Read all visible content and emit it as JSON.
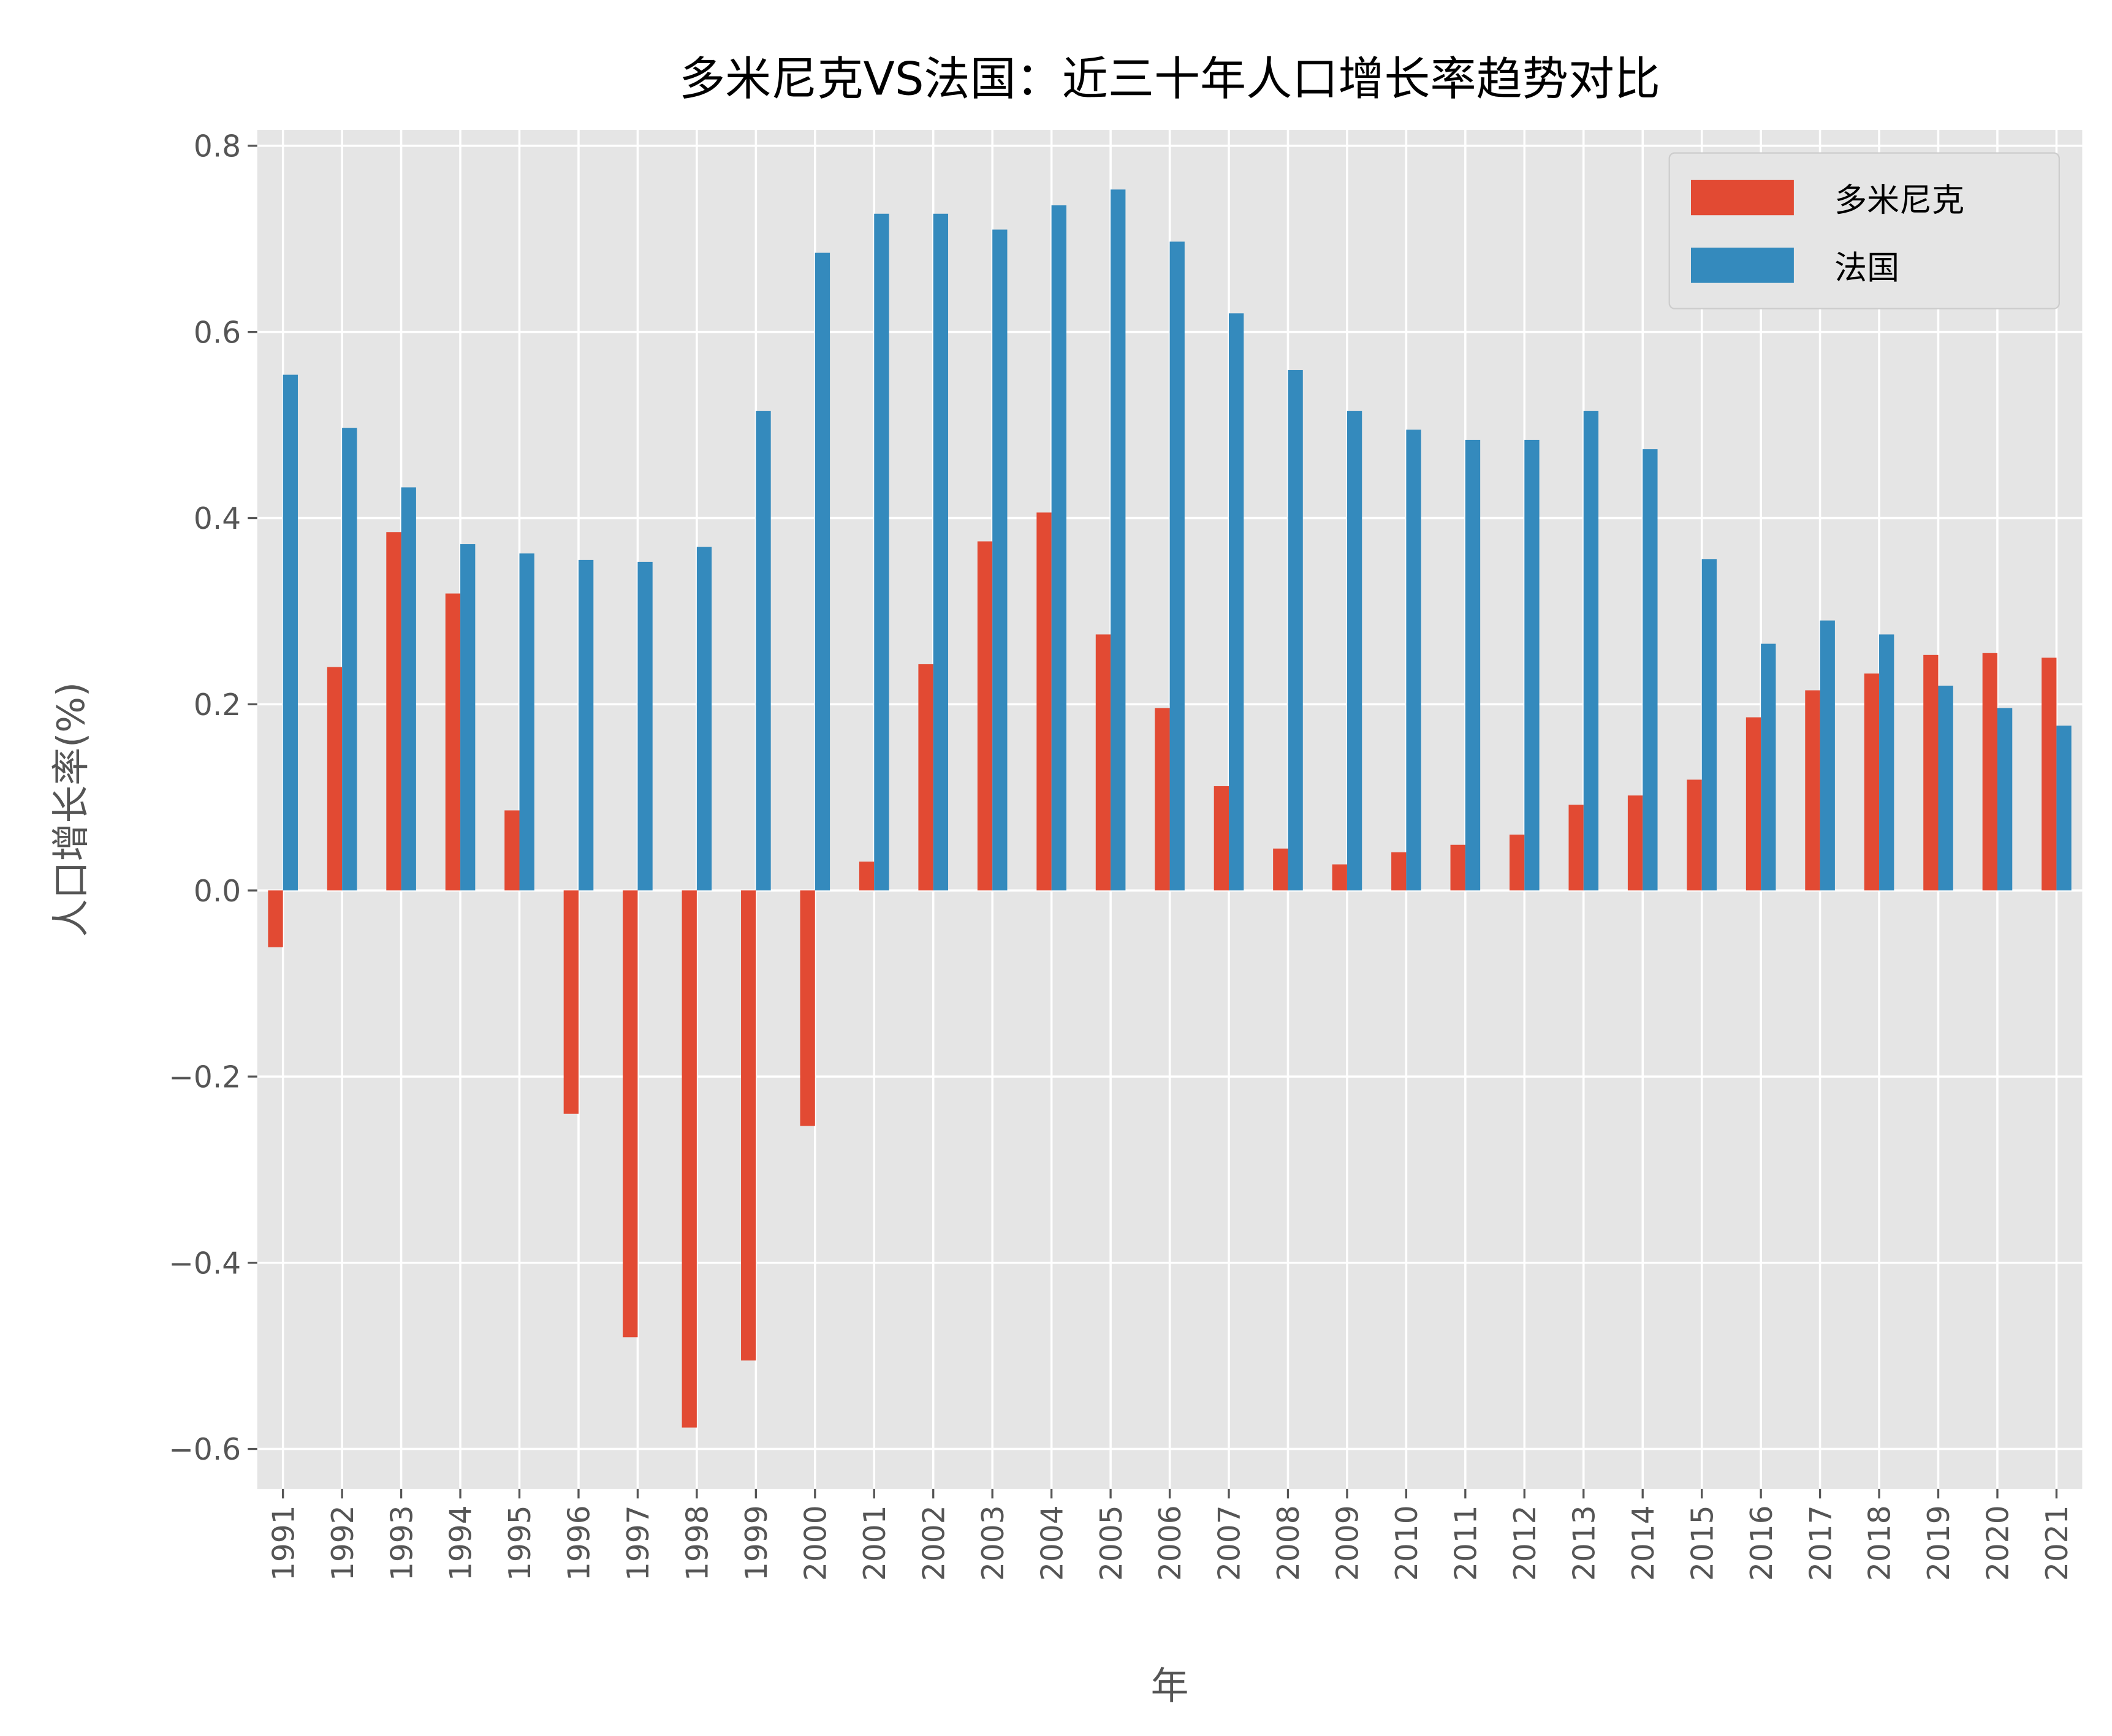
{
  "chart_data": {
    "type": "bar",
    "title": "多米尼克VS法国：近三十年人口增长率趋势对比",
    "xlabel": "年",
    "ylabel": "人口增长率(%)",
    "ylim": [
      -0.643,
      0.817
    ],
    "yticks": [
      -0.6,
      -0.4,
      -0.2,
      0.0,
      0.2,
      0.4,
      0.6,
      0.8
    ],
    "ytick_labels": [
      "−0.6",
      "−0.4",
      "−0.2",
      "0.0",
      "0.2",
      "0.4",
      "0.6",
      "0.8"
    ],
    "grid": true,
    "legend_position": "top-right",
    "background": "#E5E5E5",
    "categories": [
      "1991",
      "1992",
      "1993",
      "1994",
      "1995",
      "1996",
      "1997",
      "1998",
      "1999",
      "2000",
      "2001",
      "2002",
      "2003",
      "2004",
      "2005",
      "2006",
      "2007",
      "2008",
      "2009",
      "2010",
      "2011",
      "2012",
      "2013",
      "2014",
      "2015",
      "2016",
      "2017",
      "2018",
      "2019",
      "2020",
      "2021"
    ],
    "series": [
      {
        "name": "多米尼克",
        "color": "#E24A33",
        "values": [
          -0.061,
          0.24,
          0.385,
          0.319,
          0.086,
          -0.24,
          -0.48,
          -0.577,
          -0.505,
          -0.253,
          0.031,
          0.243,
          0.375,
          0.406,
          0.275,
          0.196,
          0.112,
          0.045,
          0.028,
          0.041,
          0.049,
          0.06,
          0.092,
          0.102,
          0.119,
          0.186,
          0.215,
          0.233,
          0.253,
          0.255,
          0.25
        ]
      },
      {
        "name": "法国",
        "color": "#348ABD",
        "values": [
          0.554,
          0.497,
          0.433,
          0.372,
          0.362,
          0.355,
          0.353,
          0.369,
          0.515,
          0.685,
          0.727,
          0.727,
          0.71,
          0.736,
          0.753,
          0.697,
          0.62,
          0.559,
          0.515,
          0.495,
          0.484,
          0.484,
          0.515,
          0.474,
          0.356,
          0.265,
          0.29,
          0.275,
          0.22,
          0.196,
          0.177
        ]
      }
    ]
  }
}
